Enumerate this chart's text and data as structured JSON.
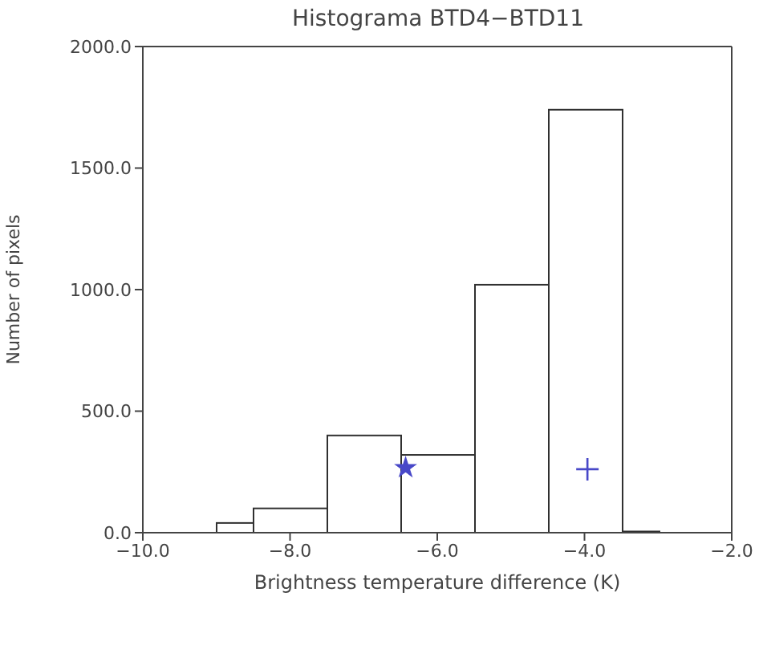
{
  "chart_data": {
    "type": "histogram",
    "title": "Histograma BTD4−BTD11",
    "xlabel": "Brightness temperature difference (K)",
    "ylabel": "Number of pixels",
    "bins": [
      -9,
      -8.5,
      -7.5,
      -6.5,
      -5.5,
      -4.5,
      -3.5,
      -3
    ],
    "values": [
      40,
      100,
      400,
      320,
      1020,
      1740,
      5
    ],
    "color": "#303030",
    "xlim": [
      -10,
      -2
    ],
    "ylim": [
      0,
      2000
    ],
    "xticks": [
      {
        "value": -10,
        "label": "−10.0"
      },
      {
        "value": -8,
        "label": "−8.0"
      },
      {
        "value": -6,
        "label": "−6.0"
      },
      {
        "value": -4,
        "label": "−4.0"
      },
      {
        "value": -2,
        "label": "−2.0"
      }
    ],
    "yticks": [
      {
        "value": 0,
        "label": "0.0"
      },
      {
        "value": 500,
        "label": "500.0"
      },
      {
        "value": 1000,
        "label": "1000.0"
      },
      {
        "value": 1500,
        "label": "1500.0"
      },
      {
        "value": 2000,
        "label": "2000.0"
      }
    ],
    "grid": false,
    "series": [
      {
        "type": "scatter",
        "marker": "star",
        "color": "#4848c8",
        "x": [
          -6.43
        ],
        "values": [
          267
        ]
      },
      {
        "type": "scatter",
        "marker": "cross",
        "color": "#4848c8",
        "x": [
          -3.96
        ],
        "values": [
          261
        ]
      }
    ]
  }
}
